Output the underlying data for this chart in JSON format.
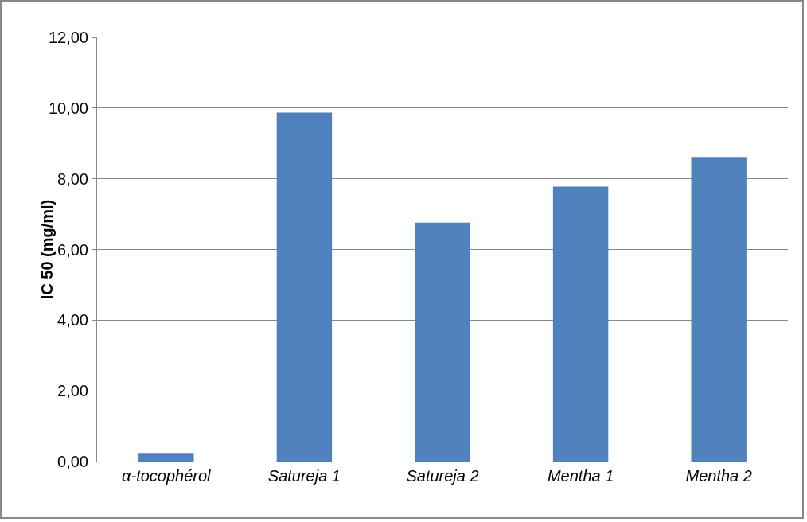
{
  "chart_data": {
    "type": "bar",
    "ylabel": "IC 50 (mg/ml)",
    "categories": [
      "α-tocophérol",
      "Satureja 1",
      "Satureja 2",
      "Mentha 1",
      "Mentha 2"
    ],
    "values": [
      0.24,
      9.87,
      6.76,
      7.78,
      8.62
    ],
    "color": "#4f81bd",
    "ylim": [
      0,
      12
    ],
    "yticks": [
      {
        "value": 0,
        "label": "0,00"
      },
      {
        "value": 2,
        "label": "2,00"
      },
      {
        "value": 4,
        "label": "4,00"
      },
      {
        "value": 6,
        "label": "6,00"
      },
      {
        "value": 8,
        "label": "8,00"
      },
      {
        "value": 10,
        "label": "10,00"
      },
      {
        "value": 12,
        "label": "12,00"
      }
    ],
    "grid": "y",
    "legend": false
  }
}
